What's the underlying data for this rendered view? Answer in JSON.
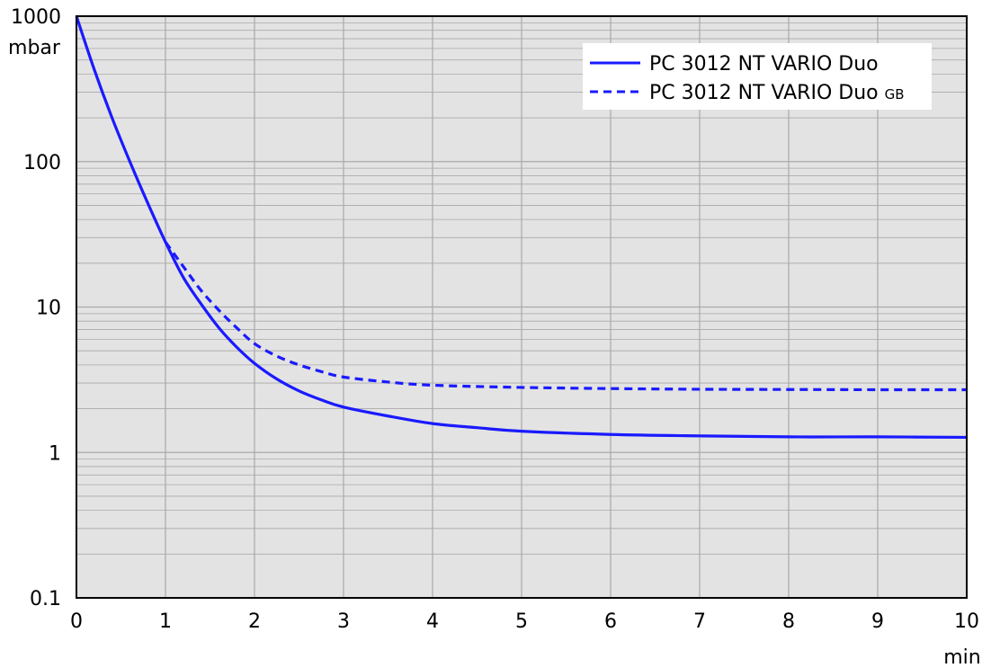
{
  "chart_data": {
    "type": "line",
    "title": "",
    "xlabel": "",
    "ylabel": "",
    "x_unit": "min",
    "y_unit": "mbar",
    "xlim": [
      0,
      10
    ],
    "ylim": [
      0.1,
      1000
    ],
    "y_scale": "log",
    "grid": true,
    "x_ticks": [
      "0",
      "1",
      "2",
      "3",
      "4",
      "5",
      "6",
      "7",
      "8",
      "9",
      "10"
    ],
    "y_ticks": [
      "0.1",
      "1",
      "10",
      "100",
      "1000"
    ],
    "legend_position": "top-right",
    "colors": {
      "plot_background": "#e3e3e3",
      "grid": "#a9a9a9",
      "series": "#1a1aff"
    },
    "series": [
      {
        "name": "PC 3012 NT VARIO Duo",
        "name_suffix": "",
        "style": "solid",
        "points": [
          [
            0,
            1000
          ],
          [
            0.2,
            430
          ],
          [
            0.4,
            200
          ],
          [
            0.6,
            100
          ],
          [
            0.8,
            52
          ],
          [
            1.0,
            28
          ],
          [
            1.2,
            16
          ],
          [
            1.4,
            10.5
          ],
          [
            1.6,
            7.2
          ],
          [
            1.8,
            5.3
          ],
          [
            2.0,
            4.1
          ],
          [
            2.25,
            3.2
          ],
          [
            2.5,
            2.65
          ],
          [
            2.75,
            2.3
          ],
          [
            3.0,
            2.05
          ],
          [
            3.5,
            1.78
          ],
          [
            4.0,
            1.58
          ],
          [
            4.5,
            1.48
          ],
          [
            5.0,
            1.4
          ],
          [
            6.0,
            1.33
          ],
          [
            7.0,
            1.3
          ],
          [
            8.0,
            1.28
          ],
          [
            9.0,
            1.28
          ],
          [
            10.0,
            1.27
          ]
        ]
      },
      {
        "name": "PC 3012 NT VARIO Duo",
        "name_suffix": "GB",
        "style": "dashed",
        "points": [
          [
            1.0,
            28
          ],
          [
            1.2,
            19
          ],
          [
            1.4,
            13
          ],
          [
            1.6,
            9.5
          ],
          [
            1.8,
            7.2
          ],
          [
            2.0,
            5.6
          ],
          [
            2.25,
            4.6
          ],
          [
            2.5,
            4.0
          ],
          [
            2.75,
            3.6
          ],
          [
            3.0,
            3.3
          ],
          [
            3.5,
            3.05
          ],
          [
            4.0,
            2.9
          ],
          [
            5.0,
            2.8
          ],
          [
            6.0,
            2.75
          ],
          [
            7.0,
            2.72
          ],
          [
            8.0,
            2.71
          ],
          [
            9.0,
            2.7
          ],
          [
            10.0,
            2.7
          ]
        ]
      }
    ]
  }
}
